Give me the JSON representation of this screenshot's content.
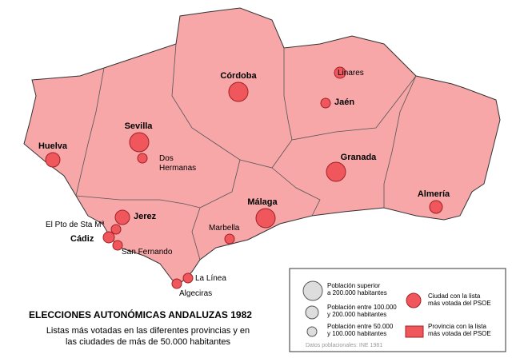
{
  "title": "ELECCIONES AUTONÓMICAS ANDALUZAS 1982",
  "subtitle": [
    "Listas más votadas en las diferentes provincias y en",
    "las ciudades de más de 50.000 habitantes"
  ],
  "cities": [
    [
      "Córdoba"
    ],
    [
      "Linares"
    ],
    [
      "Jaén"
    ],
    [
      "Sevilla"
    ],
    [
      "Dos",
      "Hermanas"
    ],
    [
      "Huelva"
    ],
    [
      "Granada"
    ],
    [
      "Almería"
    ],
    [
      "Málaga"
    ],
    [
      "Jerez"
    ],
    [
      "El Pto de Sta Mª"
    ],
    [
      "Cádiz"
    ],
    [
      "San Fernando"
    ],
    [
      "Marbella"
    ],
    [
      "La Línea"
    ],
    [
      "Algeciras"
    ]
  ],
  "legend": {
    "items": [
      [
        "Población superior",
        "a 200.000 habitantes"
      ],
      [
        "Población entre 100.000",
        "y 200.000 habitantes"
      ],
      [
        "Población entre 50.000",
        "y 100.000 habitantes"
      ],
      [
        "Ciudad con la lista",
        "más votada del PSOE"
      ],
      [
        "Provincia con la lista",
        "más votada del PSOE"
      ]
    ],
    "source": "Datos poblacionales: INE 1981"
  }
}
